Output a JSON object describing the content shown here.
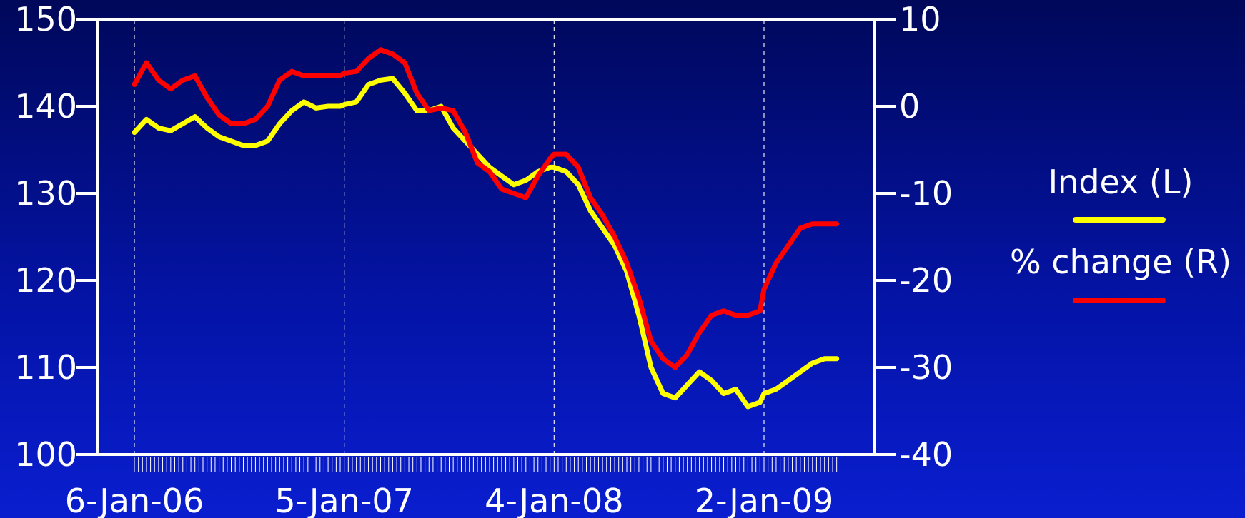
{
  "chart_data": {
    "type": "line",
    "title": "",
    "grid": "vertical dashed lines at year labels",
    "legend_placement": "right",
    "x_tick_labels": [
      "6-Jan-06",
      "5-Jan-07",
      "4-Jan-08",
      "2-Jan-09"
    ],
    "x_range": [
      "6-Jan-06",
      "8-May-09"
    ],
    "y_left": {
      "ylim": [
        100,
        150
      ],
      "ticks": [
        "100",
        "110",
        "120",
        "130",
        "140",
        "150"
      ]
    },
    "y_right": {
      "ylim": [
        -40,
        10
      ],
      "ticks": [
        "-40",
        "-30",
        "-20",
        "-10",
        "0",
        "10"
      ]
    },
    "series": [
      {
        "name": "Index (L)",
        "axis": "left",
        "color": "#ffff00",
        "x": [
          "6-Jan-06",
          "27-Jan-06",
          "17-Feb-06",
          "10-Mar-06",
          "31-Mar-06",
          "21-Apr-06",
          "12-May-06",
          "2-Jun-06",
          "23-Jun-06",
          "14-Jul-06",
          "4-Aug-06",
          "25-Aug-06",
          "15-Sep-06",
          "6-Oct-06",
          "27-Oct-06",
          "17-Nov-06",
          "8-Dec-06",
          "29-Dec-06",
          "5-Jan-07",
          "26-Jan-07",
          "16-Feb-07",
          "9-Mar-07",
          "30-Mar-07",
          "20-Apr-07",
          "11-May-07",
          "1-Jun-07",
          "22-Jun-07",
          "13-Jul-07",
          "3-Aug-07",
          "24-Aug-07",
          "14-Sep-07",
          "5-Oct-07",
          "26-Oct-07",
          "16-Nov-07",
          "7-Dec-07",
          "28-Dec-07",
          "4-Jan-08",
          "25-Jan-08",
          "15-Feb-08",
          "7-Mar-08",
          "28-Mar-08",
          "18-Apr-08",
          "9-May-08",
          "30-May-08",
          "20-Jun-08",
          "11-Jul-08",
          "1-Aug-08",
          "22-Aug-08",
          "12-Sep-08",
          "3-Oct-08",
          "24-Oct-08",
          "14-Nov-08",
          "5-Dec-08",
          "26-Dec-08",
          "2-Jan-09",
          "23-Jan-09",
          "13-Feb-09",
          "6-Mar-09",
          "27-Mar-09",
          "17-Apr-09",
          "8-May-09"
        ],
        "values": [
          137,
          138.5,
          137.5,
          137.2,
          138,
          138.8,
          137.5,
          136.5,
          136,
          135.5,
          135.5,
          136,
          138,
          139.5,
          140.5,
          139.8,
          140,
          140,
          140.2,
          140.5,
          142.5,
          143,
          143.2,
          141.5,
          139.5,
          139.5,
          140,
          137.5,
          136,
          134.5,
          133,
          132,
          131,
          131.5,
          132.5,
          133,
          133,
          132.5,
          131,
          128,
          126,
          124,
          121,
          116,
          110,
          107,
          106.5,
          108,
          109.5,
          108.5,
          107,
          107.5,
          105.5,
          106,
          107,
          107.5,
          108.5,
          109.5,
          110.5,
          111,
          111
        ]
      },
      {
        "name": "% change (R)",
        "axis": "right",
        "color": "#ff0000",
        "x": [
          "6-Jan-06",
          "27-Jan-06",
          "17-Feb-06",
          "10-Mar-06",
          "31-Mar-06",
          "21-Apr-06",
          "12-May-06",
          "2-Jun-06",
          "23-Jun-06",
          "14-Jul-06",
          "4-Aug-06",
          "25-Aug-06",
          "15-Sep-06",
          "6-Oct-06",
          "27-Oct-06",
          "17-Nov-06",
          "8-Dec-06",
          "29-Dec-06",
          "5-Jan-07",
          "26-Jan-07",
          "16-Feb-07",
          "9-Mar-07",
          "30-Mar-07",
          "20-Apr-07",
          "11-May-07",
          "1-Jun-07",
          "22-Jun-07",
          "13-Jul-07",
          "3-Aug-07",
          "24-Aug-07",
          "14-Sep-07",
          "5-Oct-07",
          "26-Oct-07",
          "16-Nov-07",
          "7-Dec-07",
          "28-Dec-07",
          "4-Jan-08",
          "25-Jan-08",
          "15-Feb-08",
          "7-Mar-08",
          "28-Mar-08",
          "18-Apr-08",
          "9-May-08",
          "30-May-08",
          "20-Jun-08",
          "11-Jul-08",
          "1-Aug-08",
          "22-Aug-08",
          "12-Sep-08",
          "3-Oct-08",
          "24-Oct-08",
          "14-Nov-08",
          "5-Dec-08",
          "26-Dec-08",
          "2-Jan-09",
          "23-Jan-09",
          "13-Feb-09",
          "6-Mar-09",
          "27-Mar-09",
          "17-Apr-09",
          "8-May-09"
        ],
        "values": [
          2.5,
          5,
          3,
          2,
          3,
          3.5,
          1,
          -1,
          -2,
          -2,
          -1.5,
          0,
          3,
          4,
          3.5,
          3.5,
          3.5,
          3.5,
          3.8,
          4,
          5.5,
          6.5,
          6,
          5,
          1.5,
          -0.5,
          -0.2,
          -0.5,
          -3,
          -6.5,
          -7.5,
          -9.5,
          -10,
          -10.5,
          -8,
          -6,
          -5.5,
          -5.5,
          -7,
          -10.5,
          -12.5,
          -15,
          -18,
          -22,
          -27,
          -29,
          -30,
          -28.5,
          -26,
          -24,
          -23.5,
          -24,
          -24,
          -23.5,
          -21,
          -18,
          -16,
          -14,
          -13.5,
          -13.5,
          -13.5
        ]
      }
    ]
  },
  "legend": {
    "items": [
      {
        "label": "Index (L)",
        "color": "#ffff00"
      },
      {
        "label": "% change (R)",
        "color": "#ff0000"
      }
    ]
  }
}
